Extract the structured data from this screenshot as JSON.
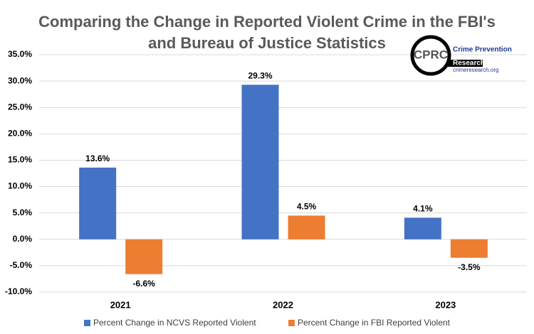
{
  "chart_data": {
    "type": "bar",
    "title": "Comparing the Change in Reported Violent Crime in the FBI's",
    "subtitle": "and Bureau of Justice Statistics",
    "categories": [
      "2021",
      "2022",
      "2023"
    ],
    "series": [
      {
        "name": "Percent Change in NCVS Reported Violent",
        "color": "#4472c4",
        "values": [
          13.6,
          29.3,
          4.1
        ],
        "value_labels": [
          "13.6%",
          "29.3%",
          "4.1%"
        ]
      },
      {
        "name": "Percent Change in FBI Reported Violent",
        "color": "#ed7d31",
        "values": [
          -6.6,
          4.5,
          -3.5
        ],
        "value_labels": [
          "-6.6%",
          "4.5%",
          "-3.5%"
        ]
      }
    ],
    "ylim": [
      -10,
      35
    ],
    "yticks": [
      {
        "value": -10,
        "label": "-10.0%"
      },
      {
        "value": -5,
        "label": "-5.0%"
      },
      {
        "value": 0,
        "label": "0.0%"
      },
      {
        "value": 5,
        "label": "5.0%"
      },
      {
        "value": 10,
        "label": "10.0%"
      },
      {
        "value": 15,
        "label": "15.0%"
      },
      {
        "value": 20,
        "label": "20.0%"
      },
      {
        "value": 25,
        "label": "25.0%"
      },
      {
        "value": 30,
        "label": "30.0%"
      },
      {
        "value": 35,
        "label": "35.0%"
      }
    ],
    "grid": true,
    "legend": "bottom"
  },
  "logo": {
    "mark": "CPRC",
    "line1": "Crime Prevention",
    "line2": "Research Center",
    "url": "crimeresearch.org"
  }
}
